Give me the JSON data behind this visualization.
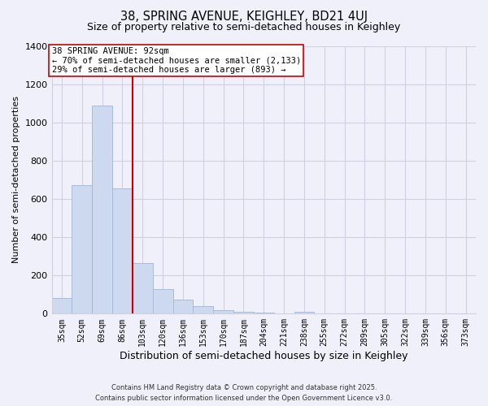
{
  "title": "38, SPRING AVENUE, KEIGHLEY, BD21 4UJ",
  "subtitle": "Size of property relative to semi-detached houses in Keighley",
  "xlabel": "Distribution of semi-detached houses by size in Keighley",
  "ylabel": "Number of semi-detached properties",
  "bar_labels": [
    "35sqm",
    "52sqm",
    "69sqm",
    "86sqm",
    "103sqm",
    "120sqm",
    "136sqm",
    "153sqm",
    "170sqm",
    "187sqm",
    "204sqm",
    "221sqm",
    "238sqm",
    "255sqm",
    "272sqm",
    "289sqm",
    "305sqm",
    "322sqm",
    "339sqm",
    "356sqm",
    "373sqm"
  ],
  "bar_values": [
    80,
    670,
    1090,
    655,
    265,
    130,
    75,
    40,
    20,
    10,
    5,
    3,
    10,
    2,
    0,
    0,
    0,
    0,
    0,
    0,
    0
  ],
  "bar_color": "#ccd9ee",
  "bar_edge_color": "#aabbd8",
  "vline_x": 3.5,
  "vline_color": "#cc0000",
  "annotation_title": "38 SPRING AVENUE: 92sqm",
  "annotation_line1": "← 70% of semi-detached houses are smaller (2,133)",
  "annotation_line2": "29% of semi-detached houses are larger (893) →",
  "annotation_box_color": "#ffffff",
  "annotation_box_edge_color": "#cc0000",
  "ylim": [
    0,
    1400
  ],
  "yticks": [
    0,
    200,
    400,
    600,
    800,
    1000,
    1200,
    1400
  ],
  "footer_line1": "Contains HM Land Registry data © Crown copyright and database right 2025.",
  "footer_line2": "Contains public sector information licensed under the Open Government Licence v3.0.",
  "background_color": "#f0f0fa",
  "grid_color": "#d0d0e0"
}
